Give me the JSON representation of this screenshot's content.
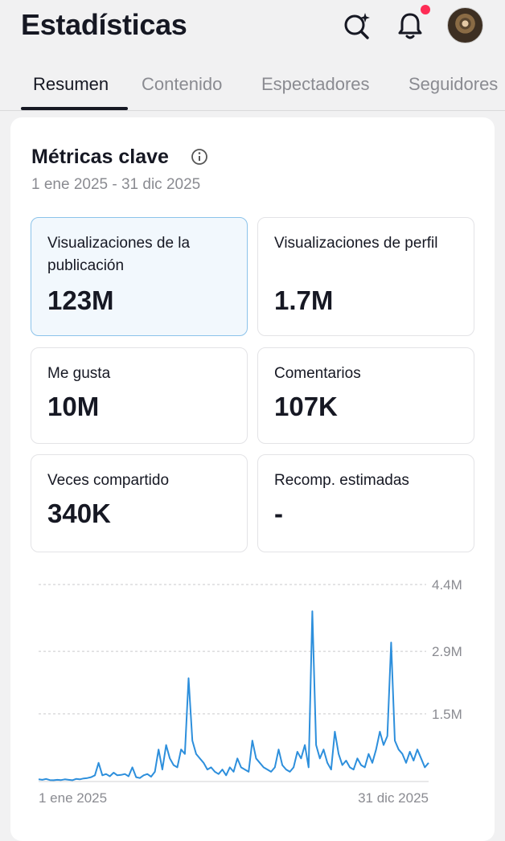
{
  "header": {
    "title": "Estadísticas",
    "search_icon": "search-sparkle-icon",
    "bell_icon": "bell-icon",
    "notification_color": "#fe2c55"
  },
  "tabs": [
    {
      "label": "Resumen",
      "active": true
    },
    {
      "label": "Contenido",
      "active": false
    },
    {
      "label": "Espectadores",
      "active": false
    },
    {
      "label": "Seguidores",
      "active": false
    }
  ],
  "key_metrics": {
    "title": "Métricas clave",
    "date_range": "1 ene 2025 - 31 dic 2025",
    "items": [
      {
        "label": "Visualizaciones de la publicación",
        "value": "123M",
        "selected": true
      },
      {
        "label": "Visualizaciones de perfil",
        "value": "1.7M",
        "selected": false
      },
      {
        "label": "Me gusta",
        "value": "10M",
        "selected": false
      },
      {
        "label": "Comentarios",
        "value": "107K",
        "selected": false
      },
      {
        "label": "Veces compartido",
        "value": "340K",
        "selected": false
      },
      {
        "label": "Recomp. estimadas",
        "value": "-",
        "selected": false
      }
    ]
  },
  "chart_data": {
    "type": "line",
    "x_start_label": "1 ene 2025",
    "x_end_label": "31 dic 2025",
    "y_ticks": [
      "4.4M",
      "2.9M",
      "1.5M"
    ],
    "y_tick_values": [
      4400000,
      2900000,
      1500000
    ],
    "ylim": [
      0,
      4400000
    ],
    "line_color": "#2d8fdc",
    "grid": true,
    "values": [
      30000,
      20000,
      40000,
      15000,
      10000,
      20000,
      15000,
      30000,
      20000,
      10000,
      40000,
      30000,
      50000,
      60000,
      80000,
      120000,
      400000,
      120000,
      150000,
      100000,
      180000,
      120000,
      130000,
      150000,
      100000,
      300000,
      80000,
      60000,
      120000,
      150000,
      90000,
      200000,
      700000,
      250000,
      800000,
      500000,
      350000,
      300000,
      700000,
      600000,
      2300000,
      900000,
      600000,
      500000,
      400000,
      250000,
      300000,
      200000,
      150000,
      250000,
      120000,
      300000,
      200000,
      500000,
      300000,
      250000,
      200000,
      900000,
      500000,
      400000,
      300000,
      250000,
      200000,
      300000,
      700000,
      350000,
      250000,
      200000,
      300000,
      650000,
      500000,
      800000,
      300000,
      3800000,
      800000,
      500000,
      700000,
      400000,
      250000,
      1100000,
      600000,
      350000,
      450000,
      300000,
      250000,
      500000,
      350000,
      300000,
      600000,
      400000,
      700000,
      1100000,
      800000,
      1000000,
      3100000,
      900000,
      700000,
      600000,
      400000,
      650000,
      450000,
      700000,
      500000,
      300000,
      400000
    ]
  }
}
